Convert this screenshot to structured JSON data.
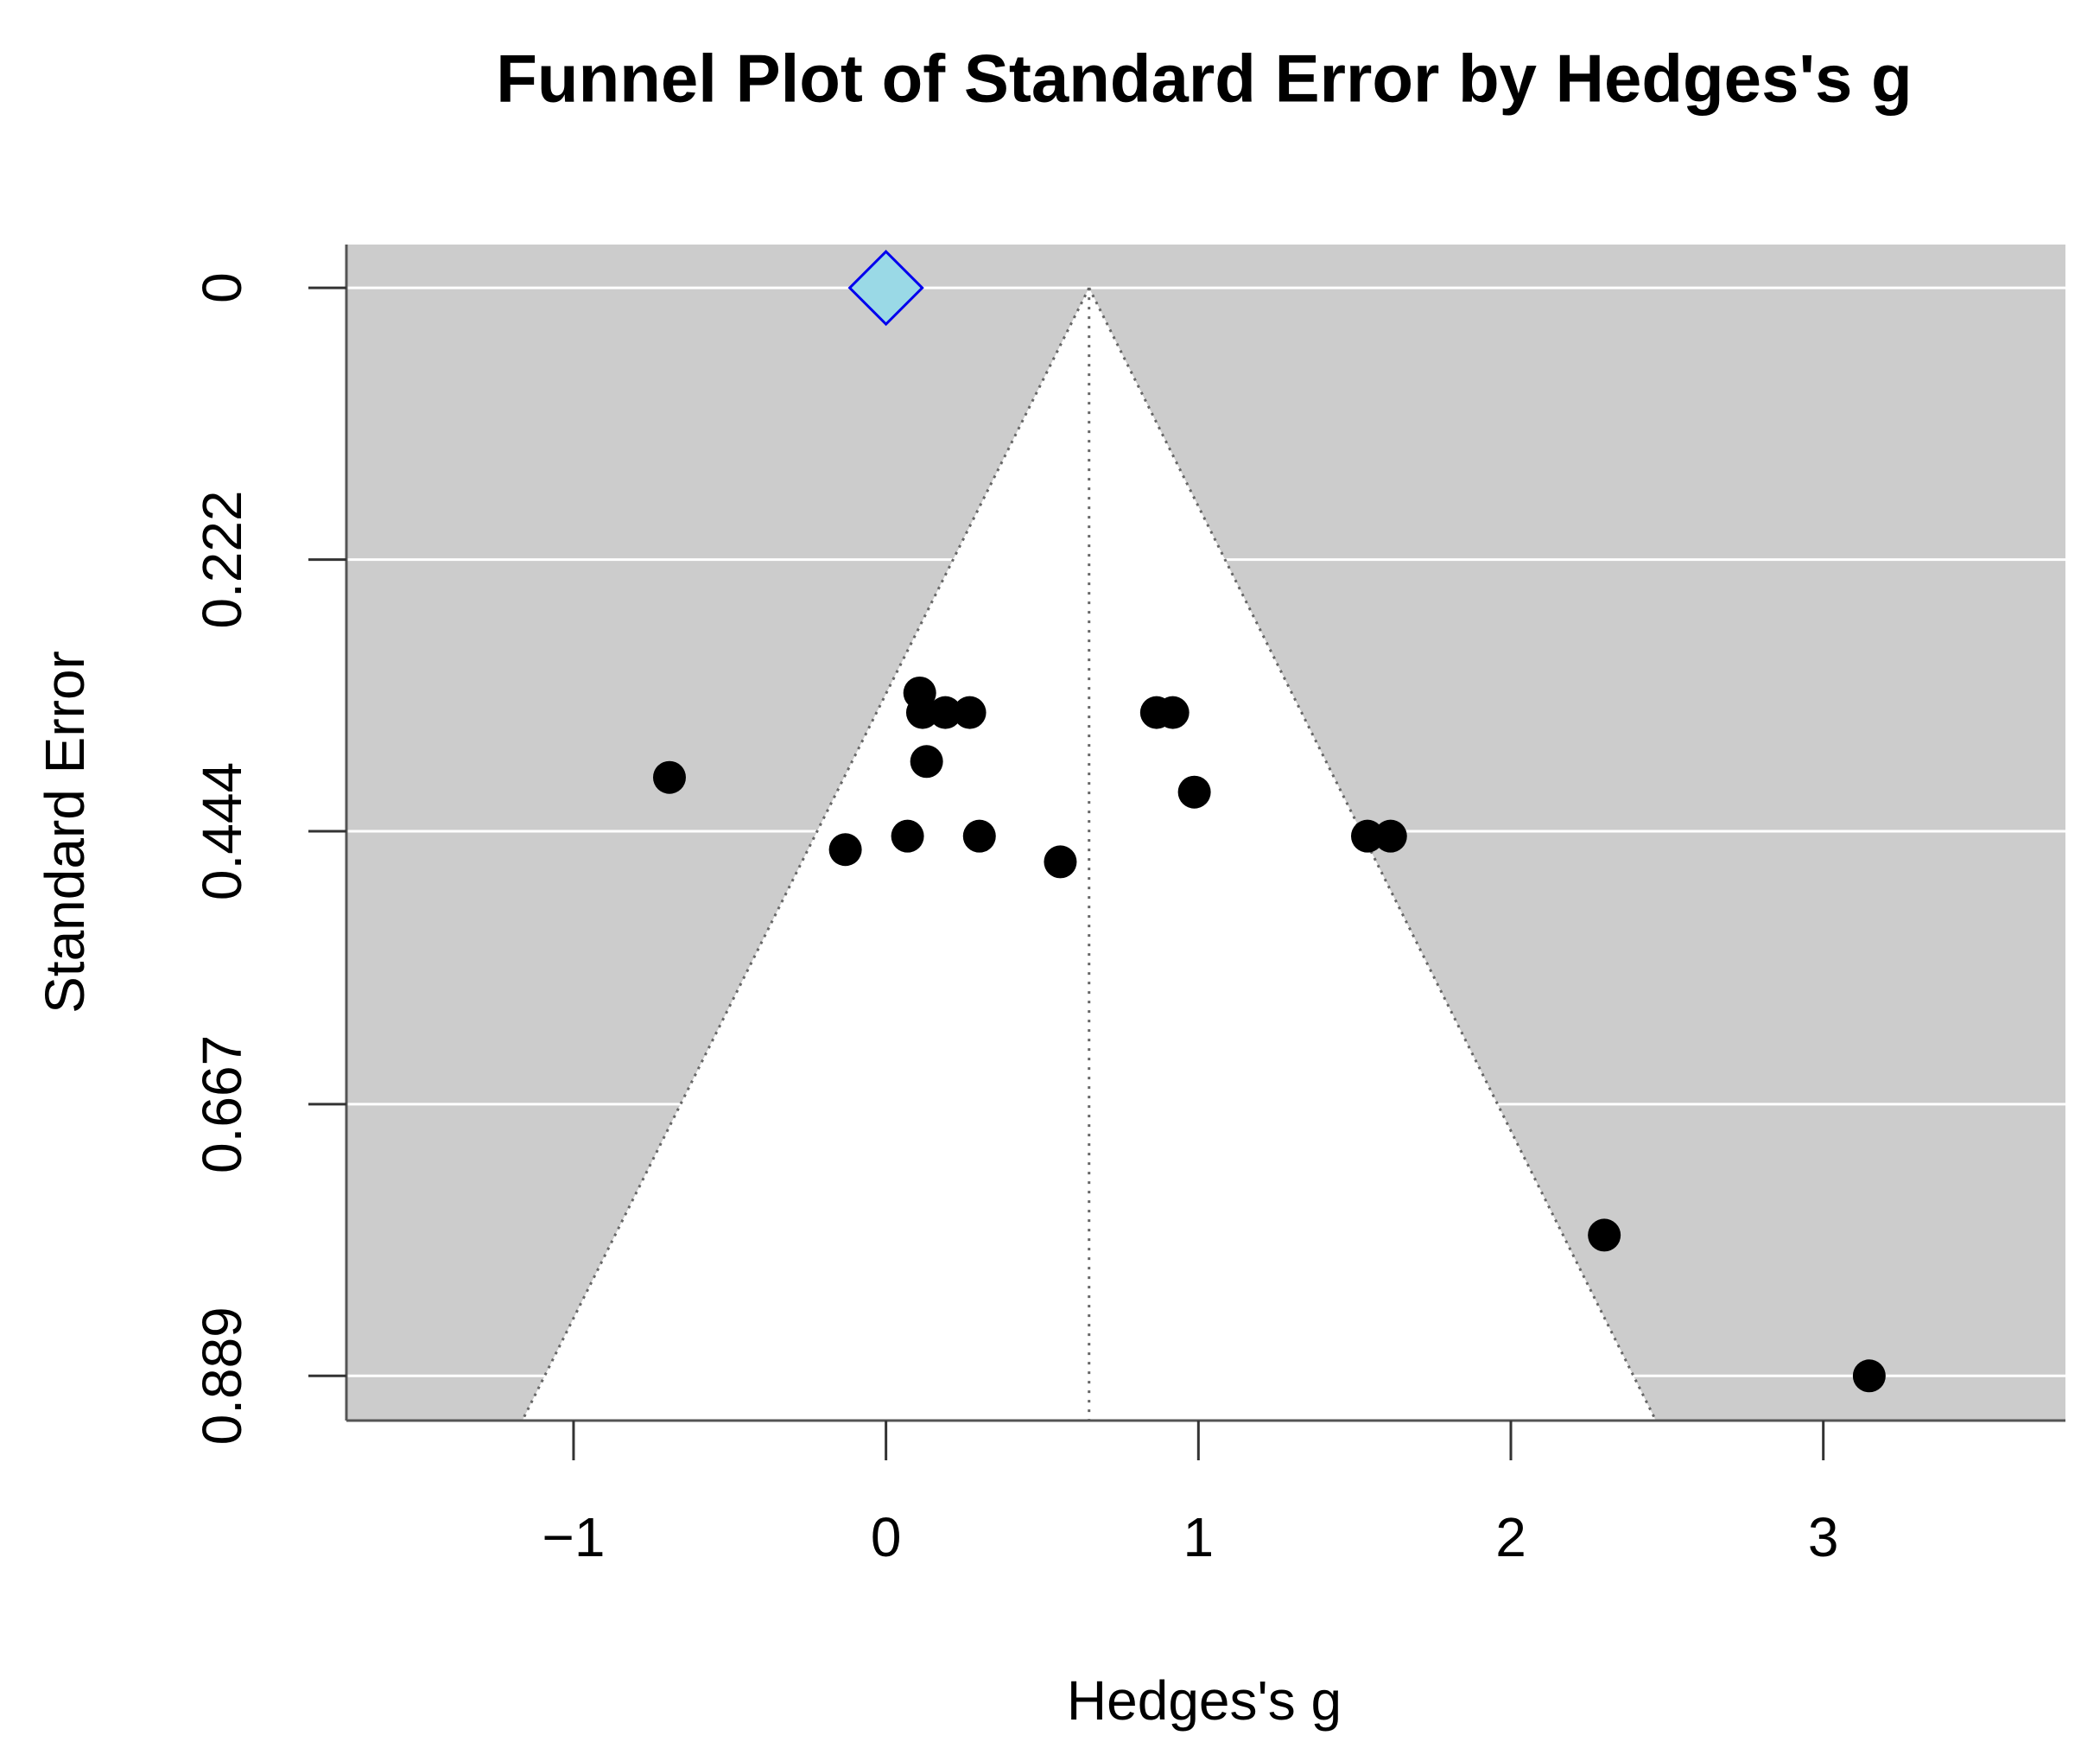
{
  "chart_data": {
    "type": "funnel",
    "title": "Funnel Plot of Standard Error by Hedges's g",
    "x_label": "Hedges's g",
    "y_label": "Standard Error",
    "xlim": [
      -1.727,
      3.775
    ],
    "ylim": [
      0.9255,
      -0.0354
    ],
    "xticks": [
      {
        "value": -1,
        "label": "−1"
      },
      0,
      1,
      2,
      3
    ],
    "yticks": [
      0,
      0.222,
      0.444,
      0.667,
      0.889
    ],
    "grid": true,
    "background_color": "#cccccc",
    "funnel_center": 0.65,
    "funnel_z": 1.96,
    "points": {
      "color": "#000000",
      "x": [
        -0.693,
        0.108,
        0.117,
        0.19,
        0.268,
        0.13,
        -0.13,
        0.069,
        0.299,
        0.558,
        0.866,
        0.918,
        0.987,
        1.541,
        1.615,
        2.299,
        3.147
      ],
      "y": [
        0.4,
        0.331,
        0.347,
        0.347,
        0.347,
        0.387,
        0.459,
        0.448,
        0.448,
        0.469,
        0.347,
        0.347,
        0.412,
        0.448,
        0.448,
        0.774,
        0.889
      ]
    },
    "summary": {
      "x": 0,
      "y": 0,
      "fill": "#9ad9e6",
      "stroke": "#0000ee"
    }
  }
}
